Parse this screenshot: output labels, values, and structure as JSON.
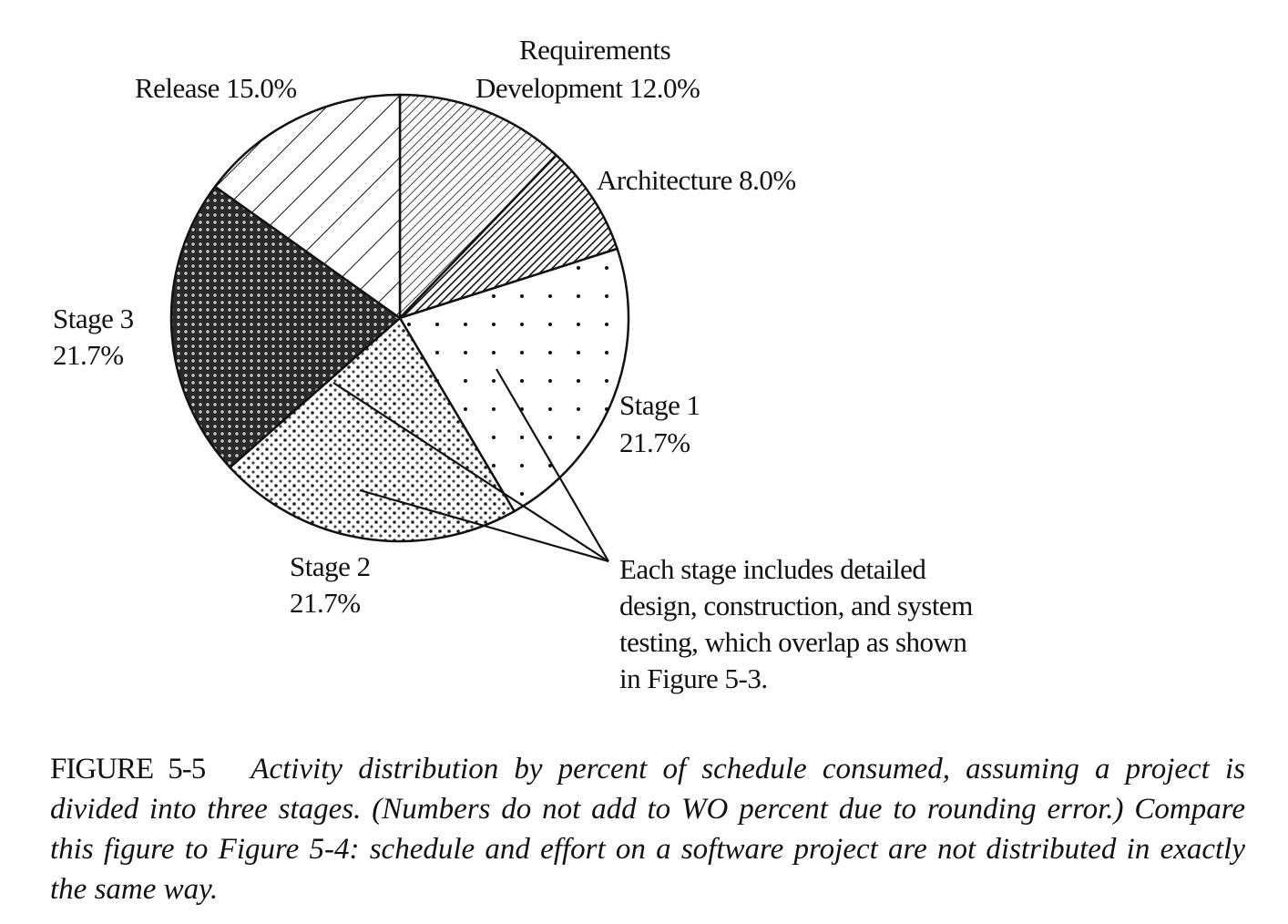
{
  "chart_data": {
    "type": "pie",
    "start": "top",
    "direction": "clockwise",
    "slices": [
      {
        "label": "Requirements Development",
        "value": 12.0,
        "value_label": "12.0%",
        "pattern": "fine-diagonal-hatch"
      },
      {
        "label": "Architecture",
        "value": 8.0,
        "value_label": "8.0%",
        "pattern": "dense-dark-diagonal-hatch"
      },
      {
        "label": "Stage 1",
        "value": 21.7,
        "value_label": "21.7%",
        "pattern": "sparse-dots"
      },
      {
        "label": "Stage 2",
        "value": 21.7,
        "value_label": "21.7%",
        "pattern": "dense-dots"
      },
      {
        "label": "Stage 3",
        "value": 21.7,
        "value_label": "21.7%",
        "pattern": "dark-dotted-fill"
      },
      {
        "label": "Release",
        "value": 15.0,
        "value_label": "15.0%",
        "pattern": "wide-diagonal-hatch"
      }
    ],
    "labels": {
      "requirements_line1": "Requirements",
      "requirements_line2": "Development 12.0%",
      "release": "Release 15.0%",
      "architecture": "Architecture 8.0%",
      "stage3_name": "Stage 3",
      "stage3_value": "21.7%",
      "stage1_name": "Stage 1",
      "stage1_value": "21.7%",
      "stage2_name": "Stage 2",
      "stage2_value": "21.7%"
    },
    "annotation": {
      "lines": [
        "Each stage includes detailed",
        "design, construction, and system",
        "testing, which overlap as shown",
        "in Figure 5-3."
      ],
      "points_to": [
        "Stage 1",
        "Stage 2",
        "Stage 3"
      ]
    }
  },
  "caption": {
    "figure_number": "FIGURE 5-5",
    "text": "Activity distribution by percent of schedule consumed, assuming a project is divided into three stages. (Numbers do not add to WO percent due to rounding error.) Compare this figure to Figure 5-4: schedule and effort on a software project are not distributed in exactly the same way."
  }
}
